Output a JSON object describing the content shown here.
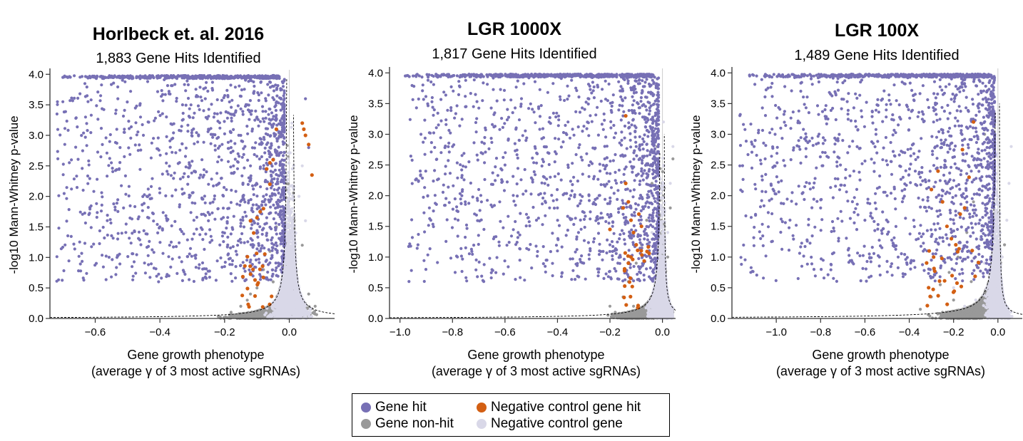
{
  "colors": {
    "gene_hit": "#7770b5",
    "gene_non_hit": "#999999",
    "neg_ctrl_hit": "#d35f13",
    "neg_ctrl": "#d9d8e8",
    "axis": "#333333"
  },
  "legend": {
    "items": [
      {
        "label": "Gene hit",
        "color": "#7770b5"
      },
      {
        "label": "Gene non-hit",
        "color": "#999999"
      },
      {
        "label": "Negative control gene hit",
        "color": "#d35f13"
      },
      {
        "label": "Negative control gene",
        "color": "#d9d8e8"
      }
    ]
  },
  "chart_data": [
    {
      "type": "scatter",
      "title": "Horlbeck et. al. 2016",
      "subtitle": "1,883 Gene Hits Identified",
      "xlabel": "Gene growth phenotype",
      "xlabel2": "(average γ of 3 most active sgRNAs)",
      "ylabel": "-log10 Mann-Whitney p-value",
      "xlim": [
        -0.74,
        0.14
      ],
      "ylim": [
        0,
        4.05
      ],
      "xticks": [
        -0.6,
        -0.4,
        -0.2,
        0.0
      ],
      "xtick_labels": [
        "−0.6",
        "−0.4",
        "−0.2",
        "0.0"
      ],
      "yticks": [
        0.0,
        0.5,
        1.0,
        1.5,
        2.0,
        2.5,
        3.0,
        3.5,
        4.0
      ],
      "ytick_labels": [
        "0.0",
        "0.5",
        "1.0",
        "1.5",
        "2.0",
        "2.5",
        "3.0",
        "3.5",
        "4.0"
      ],
      "sample_points": {
        "gene_hit": [
          [
            -0.7,
            3.95
          ],
          [
            -0.6,
            3.95
          ],
          [
            -0.5,
            3.95
          ],
          [
            -0.4,
            3.95
          ],
          [
            -0.3,
            3.95
          ],
          [
            -0.2,
            3.93
          ],
          [
            -0.12,
            3.9
          ],
          [
            -0.7,
            3.55
          ],
          [
            -0.66,
            3.28
          ],
          [
            -0.63,
            3.3
          ],
          [
            -0.53,
            3.6
          ],
          [
            -0.51,
            3.1
          ],
          [
            -0.46,
            3.3
          ],
          [
            -0.42,
            2.95
          ],
          [
            -0.38,
            2.7
          ],
          [
            -0.33,
            3.5
          ],
          [
            -0.29,
            2.4
          ],
          [
            -0.25,
            3.1
          ],
          [
            -0.22,
            2.2
          ],
          [
            -0.18,
            2.8
          ],
          [
            -0.15,
            3.0
          ],
          [
            -0.12,
            2.5
          ],
          [
            -0.1,
            3.3
          ],
          [
            -0.58,
            2.06
          ],
          [
            -0.55,
            2.55
          ],
          [
            -0.44,
            2.0
          ],
          [
            -0.4,
            1.5
          ],
          [
            -0.37,
            1.2
          ],
          [
            -0.34,
            1.0
          ],
          [
            -0.3,
            1.3
          ],
          [
            -0.27,
            2.6
          ],
          [
            -0.25,
            1.6
          ],
          [
            -0.22,
            1.8
          ],
          [
            -0.2,
            1.4
          ],
          [
            -0.18,
            1.9
          ],
          [
            -0.16,
            1.2
          ],
          [
            -0.14,
            1.5
          ],
          [
            -0.12,
            1.6
          ],
          [
            -0.1,
            2.2
          ],
          [
            -0.08,
            2.0
          ],
          [
            -0.06,
            2.8
          ],
          [
            -0.55,
            0.68
          ],
          [
            -0.33,
            0.62
          ],
          [
            -0.2,
            0.85
          ],
          [
            -0.11,
            1.2
          ],
          [
            0.05,
            3.6
          ],
          [
            0.06,
            2.8
          ]
        ],
        "gene_non_hit": [
          [
            -0.13,
            0.3
          ],
          [
            -0.1,
            0.5
          ],
          [
            -0.08,
            0.8
          ],
          [
            -0.06,
            1.1
          ],
          [
            -0.04,
            1.5
          ],
          [
            -0.02,
            2.5
          ],
          [
            -0.18,
            0.1
          ],
          [
            -0.15,
            0.2
          ],
          [
            -0.12,
            0.4
          ],
          [
            -0.05,
            0.6
          ],
          [
            0.02,
            0.8
          ],
          [
            0.04,
            1.2
          ],
          [
            0.06,
            0.4
          ],
          [
            0.08,
            0.2
          ],
          [
            -0.03,
            3.0
          ],
          [
            -0.01,
            1.8
          ]
        ],
        "neg_ctrl_hit": [
          [
            -0.07,
            2.45
          ],
          [
            -0.06,
            2.2
          ],
          [
            -0.08,
            1.8
          ],
          [
            -0.09,
            1.75
          ],
          [
            -0.1,
            1.65
          ],
          [
            -0.11,
            1.4
          ],
          [
            -0.12,
            1.6
          ],
          [
            -0.05,
            2.6
          ],
          [
            -0.04,
            3.1
          ],
          [
            0.04,
            3.2
          ],
          [
            0.045,
            3.1
          ],
          [
            0.05,
            3.0
          ],
          [
            0.06,
            2.85
          ],
          [
            0.07,
            2.35
          ],
          [
            -0.06,
            2.55
          ]
        ],
        "neg_ctrl": [
          [
            -0.02,
            0.2
          ],
          [
            -0.01,
            0.8
          ],
          [
            0.0,
            0.3
          ],
          [
            0.01,
            1.0
          ],
          [
            0.02,
            1.4
          ],
          [
            0.03,
            2.0
          ],
          [
            0.04,
            2.5
          ],
          [
            -0.03,
            1.2
          ],
          [
            -0.04,
            0.7
          ],
          [
            0.05,
            1.6
          ],
          [
            0.03,
            0.5
          ],
          [
            -0.02,
            1.8
          ]
        ]
      },
      "extremes": [
        [
          -0.7,
          3.95
        ],
        [
          -0.12,
          3.9
        ],
        [
          0.07,
          3.6
        ],
        [
          0.11,
          0.55
        ]
      ]
    },
    {
      "type": "scatter",
      "title": "LGR 1000X",
      "subtitle": "1,817 Gene Hits Identified",
      "xlabel": "Gene growth phenotype",
      "xlabel2": "(average γ of 3 most active sgRNAs)",
      "ylabel": "-log10 Mann-Whitney p-value",
      "xlim": [
        -1.04,
        0.05
      ],
      "ylim": [
        0,
        4.05
      ],
      "xticks": [
        -1.0,
        -0.8,
        -0.6,
        -0.4,
        -0.2,
        0.0
      ],
      "xtick_labels": [
        "−1.0",
        "−0.8",
        "−0.6",
        "−0.4",
        "−0.2",
        "0.0"
      ],
      "yticks": [
        0.0,
        0.5,
        1.0,
        1.5,
        2.0,
        2.5,
        3.0,
        3.5,
        4.0
      ],
      "ytick_labels": [
        "0.0",
        "0.5",
        "1.0",
        "1.5",
        "2.0",
        "2.5",
        "3.0",
        "3.5",
        "4.0"
      ],
      "sample_points": {
        "gene_hit": [
          [
            -0.98,
            3.95
          ],
          [
            -0.95,
            3.95
          ],
          [
            -0.85,
            3.95
          ],
          [
            -0.7,
            3.95
          ],
          [
            -0.5,
            3.95
          ],
          [
            -0.3,
            3.94
          ],
          [
            -0.1,
            3.92
          ],
          [
            -0.92,
            3.0
          ],
          [
            -0.8,
            2.8
          ],
          [
            -0.72,
            3.45
          ],
          [
            -0.68,
            1.45
          ],
          [
            -0.6,
            2.5
          ],
          [
            -0.52,
            2.9
          ],
          [
            -0.45,
            2.3
          ],
          [
            -0.4,
            1.8
          ],
          [
            -0.36,
            3.2
          ],
          [
            -0.32,
            1.4
          ],
          [
            -0.28,
            2.0
          ],
          [
            -0.24,
            1.1
          ],
          [
            -0.22,
            2.6
          ],
          [
            -0.19,
            1.5
          ],
          [
            -0.16,
            1.0
          ],
          [
            -0.14,
            2.1
          ],
          [
            -0.12,
            1.8
          ],
          [
            -0.1,
            2.8
          ],
          [
            -0.08,
            2.4
          ],
          [
            -0.06,
            3.2
          ],
          [
            -0.7,
            2.1
          ],
          [
            -0.62,
            1.9
          ],
          [
            -0.55,
            1.4
          ],
          [
            -0.48,
            1.6
          ],
          [
            -0.44,
            0.95
          ],
          [
            -0.4,
            1.1
          ],
          [
            -0.36,
            2.5
          ],
          [
            -0.3,
            0.9
          ],
          [
            -0.26,
            1.3
          ],
          [
            -0.2,
            1.2
          ],
          [
            -0.17,
            0.9
          ],
          [
            -0.15,
            3.3
          ]
        ],
        "gene_non_hit": [
          [
            -0.18,
            0.1
          ],
          [
            -0.15,
            0.35
          ],
          [
            -0.13,
            0.6
          ],
          [
            -0.1,
            0.9
          ],
          [
            -0.08,
            1.2
          ],
          [
            -0.06,
            1.6
          ],
          [
            -0.04,
            2.2
          ],
          [
            -0.02,
            2.8
          ],
          [
            0.0,
            0.5
          ],
          [
            0.02,
            1.0
          ],
          [
            0.03,
            1.8
          ],
          [
            0.04,
            2.6
          ],
          [
            -0.2,
            0.2
          ],
          [
            -0.11,
            0.2
          ]
        ],
        "neg_ctrl_hit": [
          [
            -0.14,
            2.2
          ],
          [
            -0.13,
            1.9
          ],
          [
            -0.12,
            1.6
          ],
          [
            -0.11,
            1.4
          ],
          [
            -0.1,
            1.2
          ],
          [
            -0.12,
            1.0
          ],
          [
            -0.13,
            0.9
          ],
          [
            -0.15,
            1.8
          ],
          [
            -0.09,
            1.7
          ],
          [
            -0.08,
            1.5
          ],
          [
            -0.14,
            3.3
          ],
          [
            -0.2,
            1.45
          ]
        ],
        "neg_ctrl": [
          [
            -0.03,
            0.3
          ],
          [
            -0.02,
            1.0
          ],
          [
            -0.01,
            1.8
          ],
          [
            0.0,
            0.8
          ],
          [
            0.01,
            0.4
          ],
          [
            0.02,
            1.4
          ],
          [
            0.03,
            2.2
          ],
          [
            0.04,
            2.8
          ],
          [
            -0.04,
            1.4
          ],
          [
            -0.05,
            2.0
          ]
        ]
      },
      "extremes": [
        [
          -0.98,
          3.95
        ],
        [
          -0.1,
          3.92
        ],
        [
          0.04,
          2.8
        ]
      ]
    },
    {
      "type": "scatter",
      "title": "LGR 100X",
      "subtitle": "1,489 Gene Hits Identified",
      "xlabel": "Gene growth phenotype",
      "xlabel2": "(average γ of 3 most active sgRNAs)",
      "ylabel": "-log10 Mann-Whitney p-value",
      "xlim": [
        -1.2,
        0.11
      ],
      "ylim": [
        0,
        4.05
      ],
      "xticks": [
        -1.0,
        -0.8,
        -0.6,
        -0.4,
        -0.2,
        0.0
      ],
      "xtick_labels": [
        "−1.0",
        "−0.8",
        "−0.6",
        "−0.4",
        "−0.2",
        "0.0"
      ],
      "yticks": [
        0.0,
        0.5,
        1.0,
        1.5,
        2.0,
        2.5,
        3.0,
        3.5,
        4.0
      ],
      "ytick_labels": [
        "0.0",
        "0.5",
        "1.0",
        "1.5",
        "2.0",
        "2.5",
        "3.0",
        "3.5",
        "4.0"
      ],
      "sample_points": {
        "gene_hit": [
          [
            -1.12,
            3.95
          ],
          [
            -1.05,
            3.95
          ],
          [
            -0.9,
            3.95
          ],
          [
            -0.75,
            3.95
          ],
          [
            -0.6,
            3.95
          ],
          [
            -0.45,
            3.94
          ],
          [
            -0.3,
            3.93
          ],
          [
            -0.15,
            3.9
          ],
          [
            -1.1,
            2.8
          ],
          [
            -1.05,
            2.6
          ],
          [
            -0.98,
            3.1
          ],
          [
            -0.85,
            2.2
          ],
          [
            -0.8,
            1.8
          ],
          [
            -0.78,
            3.4
          ],
          [
            -0.7,
            2.9
          ],
          [
            -0.65,
            2.4
          ],
          [
            -0.6,
            1.6
          ],
          [
            -0.55,
            3.0
          ],
          [
            -0.5,
            2.0
          ],
          [
            -0.47,
            1.2
          ],
          [
            -0.42,
            2.7
          ],
          [
            -0.38,
            1.6
          ],
          [
            -0.35,
            2.3
          ],
          [
            -0.32,
            1.1
          ],
          [
            -0.29,
            3.2
          ],
          [
            -0.26,
            1.9
          ],
          [
            -0.24,
            2.5
          ],
          [
            -0.21,
            1.4
          ],
          [
            -0.19,
            2.0
          ],
          [
            -0.16,
            2.9
          ],
          [
            -0.14,
            1.8
          ],
          [
            -0.12,
            2.4
          ],
          [
            -0.1,
            3.1
          ],
          [
            -0.83,
            0.8
          ],
          [
            -0.58,
            1.05
          ],
          [
            -0.45,
            1.0
          ],
          [
            -0.3,
            0.95
          ],
          [
            -0.22,
            1.2
          ]
        ],
        "gene_non_hit": [
          [
            -0.35,
            0.15
          ],
          [
            -0.3,
            0.35
          ],
          [
            -0.26,
            0.55
          ],
          [
            -0.22,
            0.75
          ],
          [
            -0.18,
            1.0
          ],
          [
            -0.14,
            1.4
          ],
          [
            -0.11,
            1.9
          ],
          [
            -0.08,
            2.5
          ],
          [
            -0.06,
            3.0
          ],
          [
            -0.25,
            0.1
          ],
          [
            -0.2,
            0.3
          ],
          [
            -0.12,
            0.6
          ],
          [
            0.0,
            0.4
          ],
          [
            0.03,
            1.2
          ]
        ],
        "neg_ctrl_hit": [
          [
            -0.3,
            2.1
          ],
          [
            -0.27,
            2.4
          ],
          [
            -0.25,
            1.9
          ],
          [
            -0.23,
            1.5
          ],
          [
            -0.21,
            1.3
          ],
          [
            -0.19,
            1.2
          ],
          [
            -0.17,
            1.7
          ],
          [
            -0.15,
            1.8
          ],
          [
            -0.13,
            2.3
          ],
          [
            -0.31,
            1.1
          ],
          [
            -0.29,
            1.0
          ],
          [
            -0.11,
            3.2
          ],
          [
            -0.16,
            2.75
          ]
        ],
        "neg_ctrl": [
          [
            -0.1,
            0.3
          ],
          [
            -0.06,
            0.9
          ],
          [
            -0.04,
            1.6
          ],
          [
            -0.02,
            2.2
          ],
          [
            0.0,
            0.6
          ],
          [
            0.02,
            1.0
          ],
          [
            0.04,
            1.6
          ],
          [
            0.05,
            2.2
          ],
          [
            0.06,
            2.8
          ],
          [
            -0.2,
            0.5
          ],
          [
            -0.15,
            0.2
          ],
          [
            -0.08,
            1.3
          ]
        ]
      },
      "extremes": [
        [
          -1.12,
          3.95
        ],
        [
          -0.15,
          3.9
        ],
        [
          0.08,
          2.7
        ]
      ]
    }
  ]
}
